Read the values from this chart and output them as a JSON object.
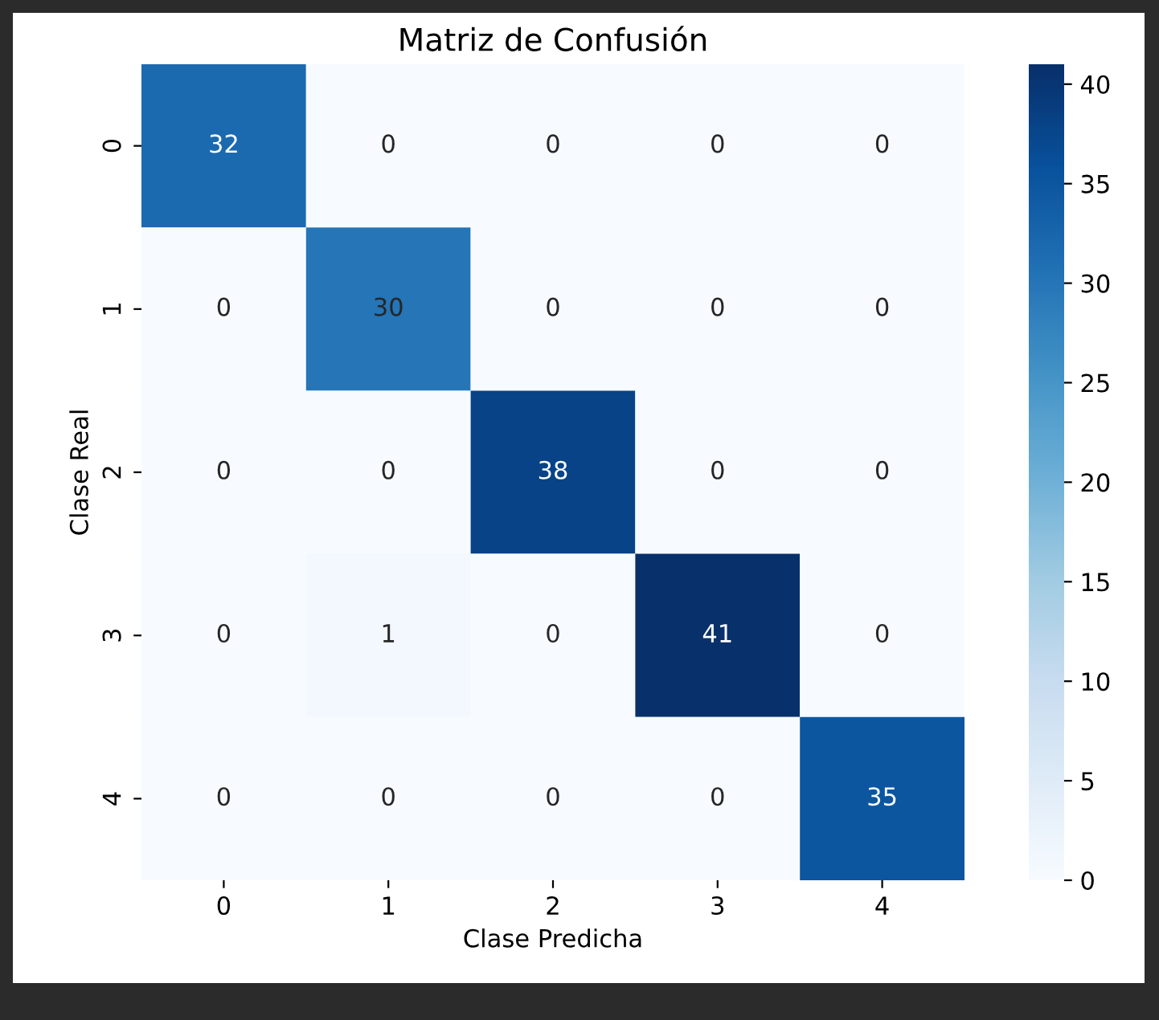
{
  "chart_data": {
    "type": "heatmap",
    "title": "Matriz de Confusión",
    "xlabel": "Clase Predicha",
    "ylabel": "Clase Real",
    "categories": [
      "0",
      "1",
      "2",
      "3",
      "4"
    ],
    "y_categories": [
      "0",
      "1",
      "2",
      "3",
      "4"
    ],
    "cells": [
      [
        32,
        0,
        0,
        0,
        0
      ],
      [
        0,
        30,
        0,
        0,
        0
      ],
      [
        0,
        0,
        38,
        0,
        0
      ],
      [
        0,
        1,
        0,
        41,
        0
      ],
      [
        0,
        0,
        0,
        0,
        35
      ]
    ],
    "data_labels": true,
    "clim": [
      0,
      41
    ],
    "cticks": [
      0,
      5,
      10,
      15,
      20,
      25,
      30,
      35,
      40
    ]
  }
}
